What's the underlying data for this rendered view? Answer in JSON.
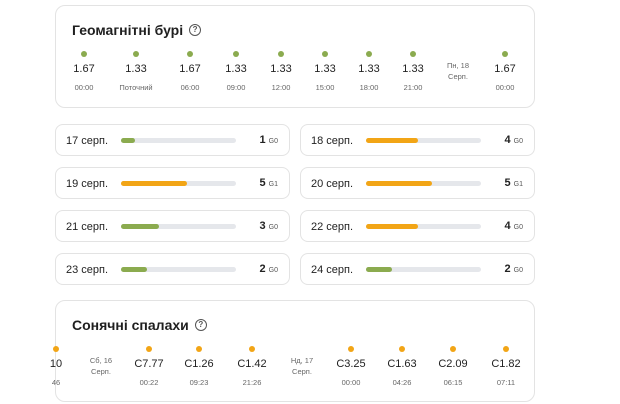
{
  "colors": {
    "green": "#8bab4f",
    "orange": "#f2a516",
    "track": "#e5e7eb"
  },
  "geomagnetic": {
    "title": "Геомагнітні бурі",
    "help_icon": "?",
    "points": [
      {
        "value": "1.67",
        "time": "00:00"
      },
      {
        "value": "1.33",
        "time": "Поточний"
      },
      {
        "value": "1.67",
        "time": "06:00"
      },
      {
        "value": "1.33",
        "time": "09:00"
      },
      {
        "value": "1.33",
        "time": "12:00"
      },
      {
        "value": "1.33",
        "time": "15:00"
      },
      {
        "value": "1.33",
        "time": "18:00"
      },
      {
        "value": "1.33",
        "time": "21:00"
      },
      {
        "day_label": [
          "Пн, 18",
          "Серп."
        ]
      },
      {
        "value": "1.67",
        "time": "00:00"
      }
    ]
  },
  "kp_days": [
    {
      "date": "17 серп.",
      "kp": "1",
      "level": "G0",
      "fill": 0.12,
      "color": "green"
    },
    {
      "date": "18 серп.",
      "kp": "4",
      "level": "G0",
      "fill": 0.45,
      "color": "orange"
    },
    {
      "date": "19 серп.",
      "kp": "5",
      "level": "G1",
      "fill": 0.57,
      "color": "orange"
    },
    {
      "date": "20 серп.",
      "kp": "5",
      "level": "G1",
      "fill": 0.57,
      "color": "orange"
    },
    {
      "date": "21 серп.",
      "kp": "3",
      "level": "G0",
      "fill": 0.33,
      "color": "green"
    },
    {
      "date": "22 серп.",
      "kp": "4",
      "level": "G0",
      "fill": 0.45,
      "color": "orange"
    },
    {
      "date": "23 серп.",
      "kp": "2",
      "level": "G0",
      "fill": 0.23,
      "color": "green"
    },
    {
      "date": "24 серп.",
      "kp": "2",
      "level": "G0",
      "fill": 0.23,
      "color": "green"
    }
  ],
  "solar": {
    "title": "Сонячні спалахи",
    "help_icon": "?",
    "points": [
      {
        "value": "10",
        "time": "46",
        "partial": true
      },
      {
        "day_label": [
          "Сб, 16",
          "Серп."
        ]
      },
      {
        "value": "C7.77",
        "time": "00:22"
      },
      {
        "value": "C1.26",
        "time": "09:23"
      },
      {
        "value": "C1.42",
        "time": "21:26"
      },
      {
        "day_label": [
          "Нд, 17",
          "Серп."
        ]
      },
      {
        "value": "C3.25",
        "time": "00:00"
      },
      {
        "value": "C1.63",
        "time": "04:26"
      },
      {
        "value": "C2.09",
        "time": "06:15"
      },
      {
        "value": "C1.82",
        "time": "07:11"
      }
    ]
  }
}
